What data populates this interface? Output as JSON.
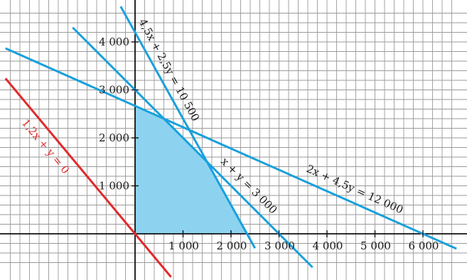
{
  "chart_data": {
    "type": "line",
    "title": "",
    "xlabel": "",
    "ylabel": "",
    "xlim": [
      -2700,
      6700
    ],
    "ylim": [
      -700,
      4700
    ],
    "grid": true,
    "grid_step": 200,
    "x_ticks": [
      {
        "value": 1000,
        "label": "1 000"
      },
      {
        "value": 2000,
        "label": "2 000"
      },
      {
        "value": 3000,
        "label": "3 000"
      },
      {
        "value": 4000,
        "label": "4 000"
      },
      {
        "value": 5000,
        "label": "5 000"
      },
      {
        "value": 6000,
        "label": "6 000"
      }
    ],
    "y_ticks": [
      {
        "value": 1000,
        "label": "1 000"
      },
      {
        "value": 2000,
        "label": "2 000"
      },
      {
        "value": 3000,
        "label": "3 000"
      },
      {
        "value": 4000,
        "label": "4 000"
      }
    ],
    "series": [
      {
        "name": "4,5x + 2,5y = 10 500",
        "color": "#1aa0dc",
        "a": 4.5,
        "b": 2.5,
        "c": 10500,
        "x": [
          1400,
          2400
        ],
        "y": [
          1680,
          -120
        ],
        "x_full": [
          -300,
          2500
        ],
        "y_full": [
          4740,
          -300
        ]
      },
      {
        "name": "x + y = 3 000",
        "color": "#1aa0dc",
        "a": 1,
        "b": 1,
        "c": 3000,
        "x": [
          -1300,
          3700
        ],
        "y": [
          4300,
          -700
        ]
      },
      {
        "name": "2x + 4,5y = 12 000",
        "color": "#1aa0dc",
        "a": 2,
        "b": 4.5,
        "c": 12000,
        "x": [
          -2700,
          6700
        ],
        "y": [
          3866.67,
          -311.11
        ]
      },
      {
        "name": "1,2x + y = 0",
        "color": "#e02a2a",
        "a": 1.2,
        "b": 1,
        "c": 0,
        "x": [
          -2700,
          750
        ],
        "y": [
          3240,
          -900
        ]
      }
    ],
    "feasible_region": {
      "color": "#8dd3f0",
      "vertices": [
        [
          0,
          0
        ],
        [
          0,
          2666.67
        ],
        [
          600,
          2400
        ],
        [
          1500,
          1500
        ],
        [
          2333.33,
          0
        ]
      ]
    },
    "labels": [
      {
        "text": "4,5x + 2,5y = 10 500",
        "series": 0
      },
      {
        "text": "x + y = 3 000",
        "series": 1
      },
      {
        "text": "2x + 4,5y = 12 000",
        "series": 2
      },
      {
        "text": "1,2x + y = 0",
        "series": 3
      }
    ]
  }
}
